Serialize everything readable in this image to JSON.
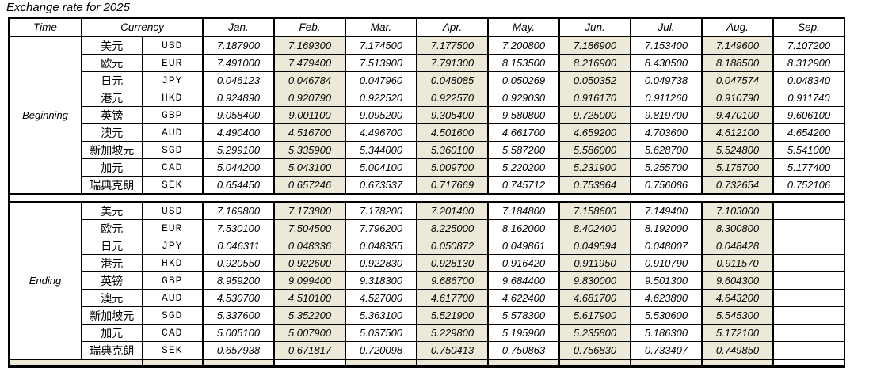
{
  "title": "Exchange rate for 2025",
  "colors": {
    "stripe": "#ECE9D8",
    "border": "#000000",
    "background": "#FFFFFF"
  },
  "table": {
    "headers": {
      "time": "Time",
      "currency": "Currency",
      "months": [
        "Jan.",
        "Feb.",
        "Mar.",
        "Apr.",
        "May.",
        "Jun.",
        "Jul.",
        "Aug.",
        "Sep."
      ]
    },
    "striped_months": [
      "Feb.",
      "Apr.",
      "Jun.",
      "Aug."
    ],
    "sections": [
      {
        "label": "Beginning",
        "rows": [
          {
            "name_zh": "美元",
            "code": "USD",
            "values": [
              "7.187900",
              "7.169300",
              "7.174500",
              "7.177500",
              "7.200800",
              "7.186900",
              "7.153400",
              "7.149600",
              "7.107200"
            ]
          },
          {
            "name_zh": "欧元",
            "code": "EUR",
            "values": [
              "7.491000",
              "7.479400",
              "7.513900",
              "7.791300",
              "8.153500",
              "8.216900",
              "8.430500",
              "8.188500",
              "8.312900"
            ]
          },
          {
            "name_zh": "日元",
            "code": "JPY",
            "values": [
              "0.046123",
              "0.046784",
              "0.047960",
              "0.048085",
              "0.050269",
              "0.050352",
              "0.049738",
              "0.047574",
              "0.048340"
            ]
          },
          {
            "name_zh": "港元",
            "code": "HKD",
            "values": [
              "0.924890",
              "0.920790",
              "0.922520",
              "0.922570",
              "0.929030",
              "0.916170",
              "0.911260",
              "0.910790",
              "0.911740"
            ]
          },
          {
            "name_zh": "英镑",
            "code": "GBP",
            "values": [
              "9.058400",
              "9.001100",
              "9.095200",
              "9.305400",
              "9.580800",
              "9.725000",
              "9.819700",
              "9.470100",
              "9.606100"
            ]
          },
          {
            "name_zh": "澳元",
            "code": "AUD",
            "values": [
              "4.490400",
              "4.516700",
              "4.496700",
              "4.501600",
              "4.661700",
              "4.659200",
              "4.703600",
              "4.612100",
              "4.654200"
            ]
          },
          {
            "name_zh": "新加坡元",
            "code": "SGD",
            "values": [
              "5.299100",
              "5.335900",
              "5.344000",
              "5.360100",
              "5.587200",
              "5.586000",
              "5.628700",
              "5.524800",
              "5.541000"
            ]
          },
          {
            "name_zh": "加元",
            "code": "CAD",
            "values": [
              "5.044200",
              "5.043100",
              "5.004100",
              "5.009700",
              "5.220200",
              "5.231900",
              "5.255700",
              "5.175700",
              "5.177400"
            ]
          },
          {
            "name_zh": "瑞典克朗",
            "code": "SEK",
            "values": [
              "0.654450",
              "0.657246",
              "0.673537",
              "0.717669",
              "0.745712",
              "0.753864",
              "0.756086",
              "0.732654",
              "0.752106"
            ]
          }
        ]
      },
      {
        "label": "Ending",
        "rows": [
          {
            "name_zh": "美元",
            "code": "USD",
            "values": [
              "7.169800",
              "7.173800",
              "7.178200",
              "7.201400",
              "7.184800",
              "7.158600",
              "7.149400",
              "7.103000",
              ""
            ]
          },
          {
            "name_zh": "欧元",
            "code": "EUR",
            "values": [
              "7.530100",
              "7.504500",
              "7.796200",
              "8.225000",
              "8.162000",
              "8.402400",
              "8.192000",
              "8.300800",
              ""
            ]
          },
          {
            "name_zh": "日元",
            "code": "JPY",
            "values": [
              "0.046311",
              "0.048336",
              "0.048355",
              "0.050872",
              "0.049861",
              "0.049594",
              "0.048007",
              "0.048428",
              ""
            ]
          },
          {
            "name_zh": "港元",
            "code": "HKD",
            "values": [
              "0.920550",
              "0.922600",
              "0.922830",
              "0.928130",
              "0.916420",
              "0.911950",
              "0.910790",
              "0.911570",
              ""
            ]
          },
          {
            "name_zh": "英镑",
            "code": "GBP",
            "values": [
              "8.959200",
              "9.099400",
              "9.318300",
              "9.686700",
              "9.684400",
              "9.830000",
              "9.501300",
              "9.604300",
              ""
            ]
          },
          {
            "name_zh": "澳元",
            "code": "AUD",
            "values": [
              "4.530700",
              "4.510100",
              "4.527000",
              "4.617700",
              "4.622400",
              "4.681700",
              "4.623800",
              "4.643200",
              ""
            ]
          },
          {
            "name_zh": "新加坡元",
            "code": "SGD",
            "values": [
              "5.337600",
              "5.352200",
              "5.363100",
              "5.521900",
              "5.578300",
              "5.617900",
              "5.530600",
              "5.545300",
              ""
            ]
          },
          {
            "name_zh": "加元",
            "code": "CAD",
            "values": [
              "5.005100",
              "5.007900",
              "5.037500",
              "5.229800",
              "5.195900",
              "5.235800",
              "5.186300",
              "5.172100",
              ""
            ]
          },
          {
            "name_zh": "瑞典克朗",
            "code": "SEK",
            "values": [
              "0.657938",
              "0.671817",
              "0.720098",
              "0.750413",
              "0.750863",
              "0.756830",
              "0.733407",
              "0.749850",
              ""
            ]
          }
        ]
      }
    ]
  }
}
